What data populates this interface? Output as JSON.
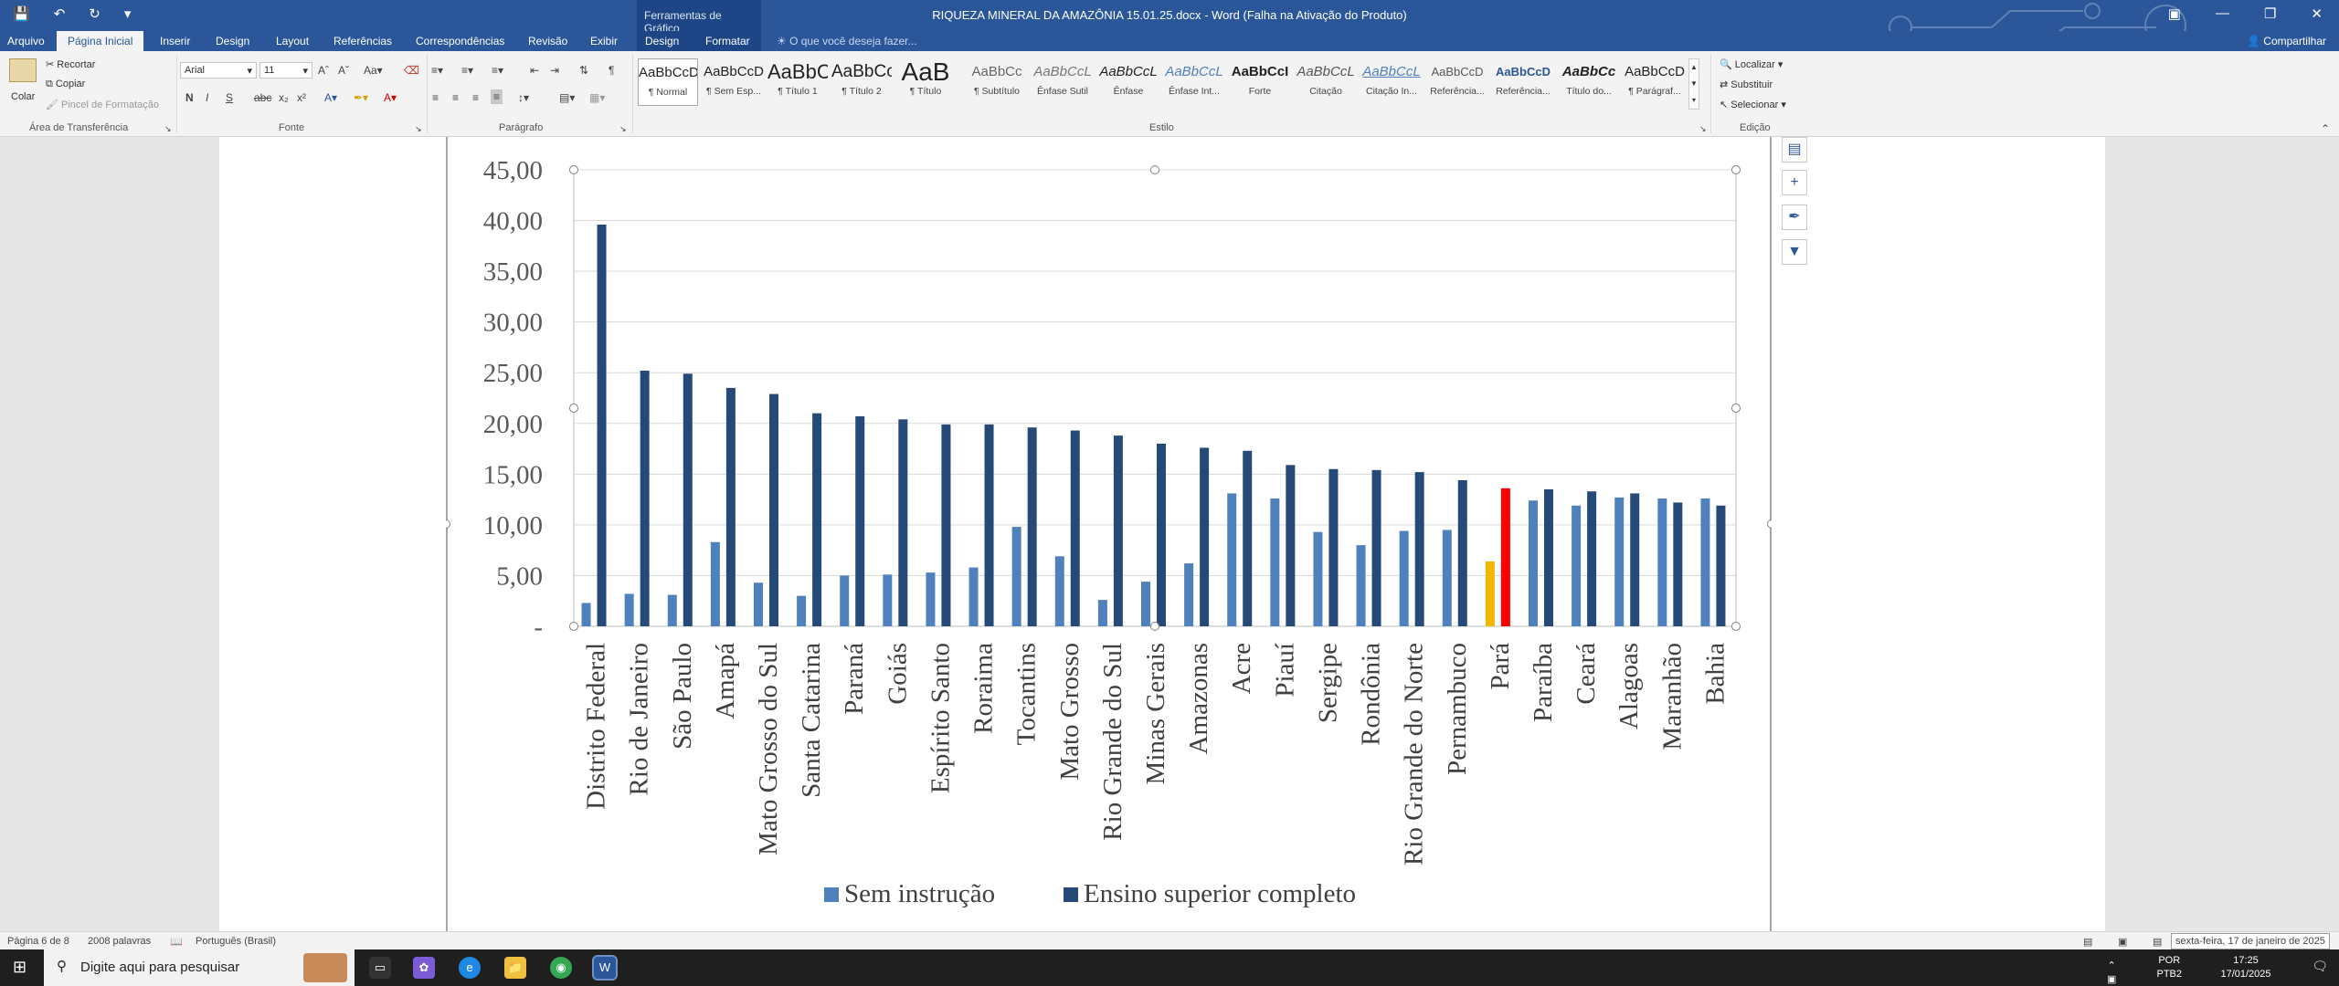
{
  "titlebar": {
    "document_title": "RIQUEZA MINERAL DA AMAZÔNIA 15.01.25.docx - Word (Falha na Ativação do Produto)",
    "context_group": "Ferramentas de Gráfico"
  },
  "tabs": {
    "file": "Arquivo",
    "items": [
      "Página Inicial",
      "Inserir",
      "Design",
      "Layout",
      "Referências",
      "Correspondências",
      "Revisão",
      "Exibir"
    ],
    "context_items": [
      "Design",
      "Formatar"
    ],
    "tell_me": "O que você deseja fazer...",
    "share": "Compartilhar"
  },
  "ribbon": {
    "clipboard": {
      "paste": "Colar",
      "cut": "Recortar",
      "copy": "Copiar",
      "format_painter": "Pincel de Formatação",
      "group_label": "Área de Transferência"
    },
    "font": {
      "font_name": "Arial",
      "font_size": "11",
      "group_label": "Fonte"
    },
    "paragraph": {
      "group_label": "Parágrafo"
    },
    "styles": {
      "group_label": "Estilo",
      "items": [
        {
          "sample": "AaBbCcD",
          "name": "¶ Normal"
        },
        {
          "sample": "AaBbCcD",
          "name": "¶ Sem Esp..."
        },
        {
          "sample": "AaBbC",
          "name": "¶ Título 1"
        },
        {
          "sample": "AaBbCc",
          "name": "¶ Título 2"
        },
        {
          "sample": "AaB",
          "name": "¶ Título"
        },
        {
          "sample": "AaBbCc",
          "name": "¶ Subtítulo"
        },
        {
          "sample": "AaBbCcL",
          "name": "Ênfase Sutil"
        },
        {
          "sample": "AaBbCcL",
          "name": "Ênfase"
        },
        {
          "sample": "AaBbCcL",
          "name": "Ênfase Int..."
        },
        {
          "sample": "AaBbCcI",
          "name": "Forte"
        },
        {
          "sample": "AaBbCcL",
          "name": "Citação"
        },
        {
          "sample": "AaBbCcL",
          "name": "Citação In..."
        },
        {
          "sample": "AaBbCcD",
          "name": "Referência..."
        },
        {
          "sample": "AaBbCcD",
          "name": "Referência..."
        },
        {
          "sample": "AaBbCc",
          "name": "Título do..."
        },
        {
          "sample": "AaBbCcD",
          "name": "¶ Parágraf..."
        }
      ]
    },
    "editing": {
      "find": "Localizar",
      "replace": "Substituir",
      "select": "Selecionar",
      "group_label": "Edição"
    }
  },
  "statusbar": {
    "page": "Página 6 de 8",
    "words": "2008 palavras",
    "language": "Português (Brasil)",
    "date_tooltip": "sexta-feira, 17 de janeiro de 2025"
  },
  "taskbar": {
    "search_placeholder": "Digite aqui para pesquisar",
    "lang": "POR",
    "layout": "PTB2",
    "time": "17:25",
    "date": "17/01/2025"
  },
  "colors": {
    "word_blue": "#2b579a",
    "series_sem": "#4f81bd",
    "series_sup": "#254a78",
    "highlight_sem": "#f2b705",
    "highlight_sup": "#ff0000"
  },
  "chart_data": {
    "type": "bar",
    "highlight_category": "Pará",
    "ylim": [
      0,
      45
    ],
    "yticks": [
      "-",
      "5,00",
      "10,00",
      "15,00",
      "20,00",
      "25,00",
      "30,00",
      "35,00",
      "40,00",
      "45,00"
    ],
    "legend_position": "bottom",
    "grid": true,
    "categories": [
      "Distrito Federal",
      "Rio de Janeiro",
      "São Paulo",
      "Amapá",
      "Mato Grosso do Sul",
      "Santa Catarina",
      "Paraná",
      "Goiás",
      "Espírito Santo",
      "Roraima",
      "Tocantins",
      "Mato Grosso",
      "Rio Grande do Sul",
      "Minas Gerais",
      "Amazonas",
      "Acre",
      "Piauí",
      "Sergipe",
      "Rondônia",
      "Rio Grande do Norte",
      "Pernambuco",
      "Pará",
      "Paraíba",
      "Ceará",
      "Alagoas",
      "Maranhão",
      "Bahia"
    ],
    "series": [
      {
        "name": "Sem instrução",
        "values": [
          2.3,
          3.2,
          3.1,
          8.3,
          4.3,
          3.0,
          5.0,
          5.1,
          5.3,
          5.8,
          9.8,
          6.9,
          2.6,
          4.4,
          6.2,
          13.1,
          12.6,
          9.3,
          8.0,
          9.4,
          9.5,
          6.4,
          12.4,
          11.9,
          12.7,
          12.6,
          12.6
        ]
      },
      {
        "name": "Ensino superior completo",
        "values": [
          39.6,
          25.2,
          24.9,
          23.5,
          22.9,
          21.0,
          20.7,
          20.4,
          19.9,
          19.9,
          19.6,
          19.3,
          18.8,
          18.0,
          17.6,
          17.3,
          15.9,
          15.5,
          15.4,
          15.2,
          14.4,
          13.6,
          13.5,
          13.3,
          13.1,
          12.2,
          11.9
        ]
      }
    ]
  }
}
